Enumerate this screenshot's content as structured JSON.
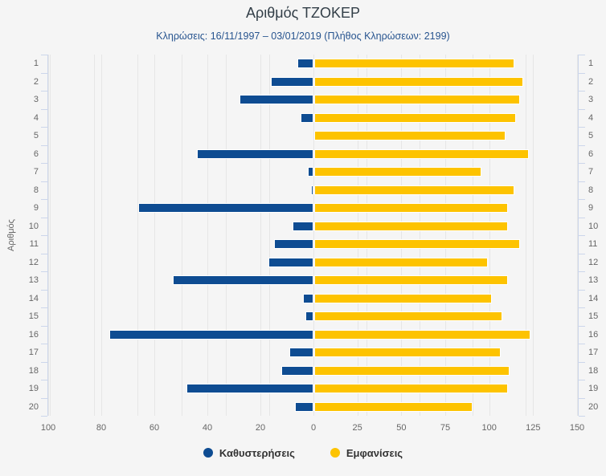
{
  "chart_data": {
    "type": "bar",
    "inverted": true,
    "diverging": true,
    "title": "Αριθμός ΤΖΟΚΕΡ",
    "subtitle": "Κληρώσεις: 16/11/1997 – 03/01/2019 (Πλήθος Κληρώσεων: 2199)",
    "draw_count": 2199,
    "category_axis": {
      "label": "Αριθμός",
      "categories": [
        "1",
        "2",
        "3",
        "4",
        "5",
        "6",
        "7",
        "8",
        "9",
        "10",
        "11",
        "12",
        "13",
        "14",
        "15",
        "16",
        "17",
        "18",
        "19",
        "20"
      ],
      "labels_on_both_sides": true
    },
    "left_value_axis": {
      "min": 0,
      "max": 100,
      "ticks": [
        100,
        80,
        60,
        40,
        20,
        0
      ],
      "direction": "left"
    },
    "right_value_axis": {
      "min": 0,
      "max": 150,
      "ticks": [
        0,
        25,
        50,
        75,
        100,
        125,
        150
      ],
      "direction": "right"
    },
    "series": [
      {
        "name": "Καθυστερήσεις",
        "axis": "left",
        "color": "#0e4c92",
        "values": [
          6,
          16,
          28,
          5,
          0,
          44,
          2,
          1,
          66,
          8,
          15,
          17,
          53,
          4,
          3,
          77,
          9,
          12,
          48,
          7
        ]
      },
      {
        "name": "Εμφανίσεις",
        "axis": "right",
        "color": "#fdc300",
        "values": [
          114,
          119,
          117,
          115,
          109,
          122,
          95,
          114,
          110,
          110,
          117,
          99,
          110,
          101,
          107,
          123,
          106,
          111,
          110,
          90
        ]
      }
    ],
    "legend_position": "bottom",
    "grid": true
  },
  "colors": {
    "background": "#f5f5f5",
    "grid": "#e6e6e6",
    "axis": "#ccd6eb",
    "tick_label": "#666666",
    "title": "#333f48",
    "subtitle": "#27548f",
    "legend_text": "#333333",
    "bar_border": "#ffffff"
  }
}
